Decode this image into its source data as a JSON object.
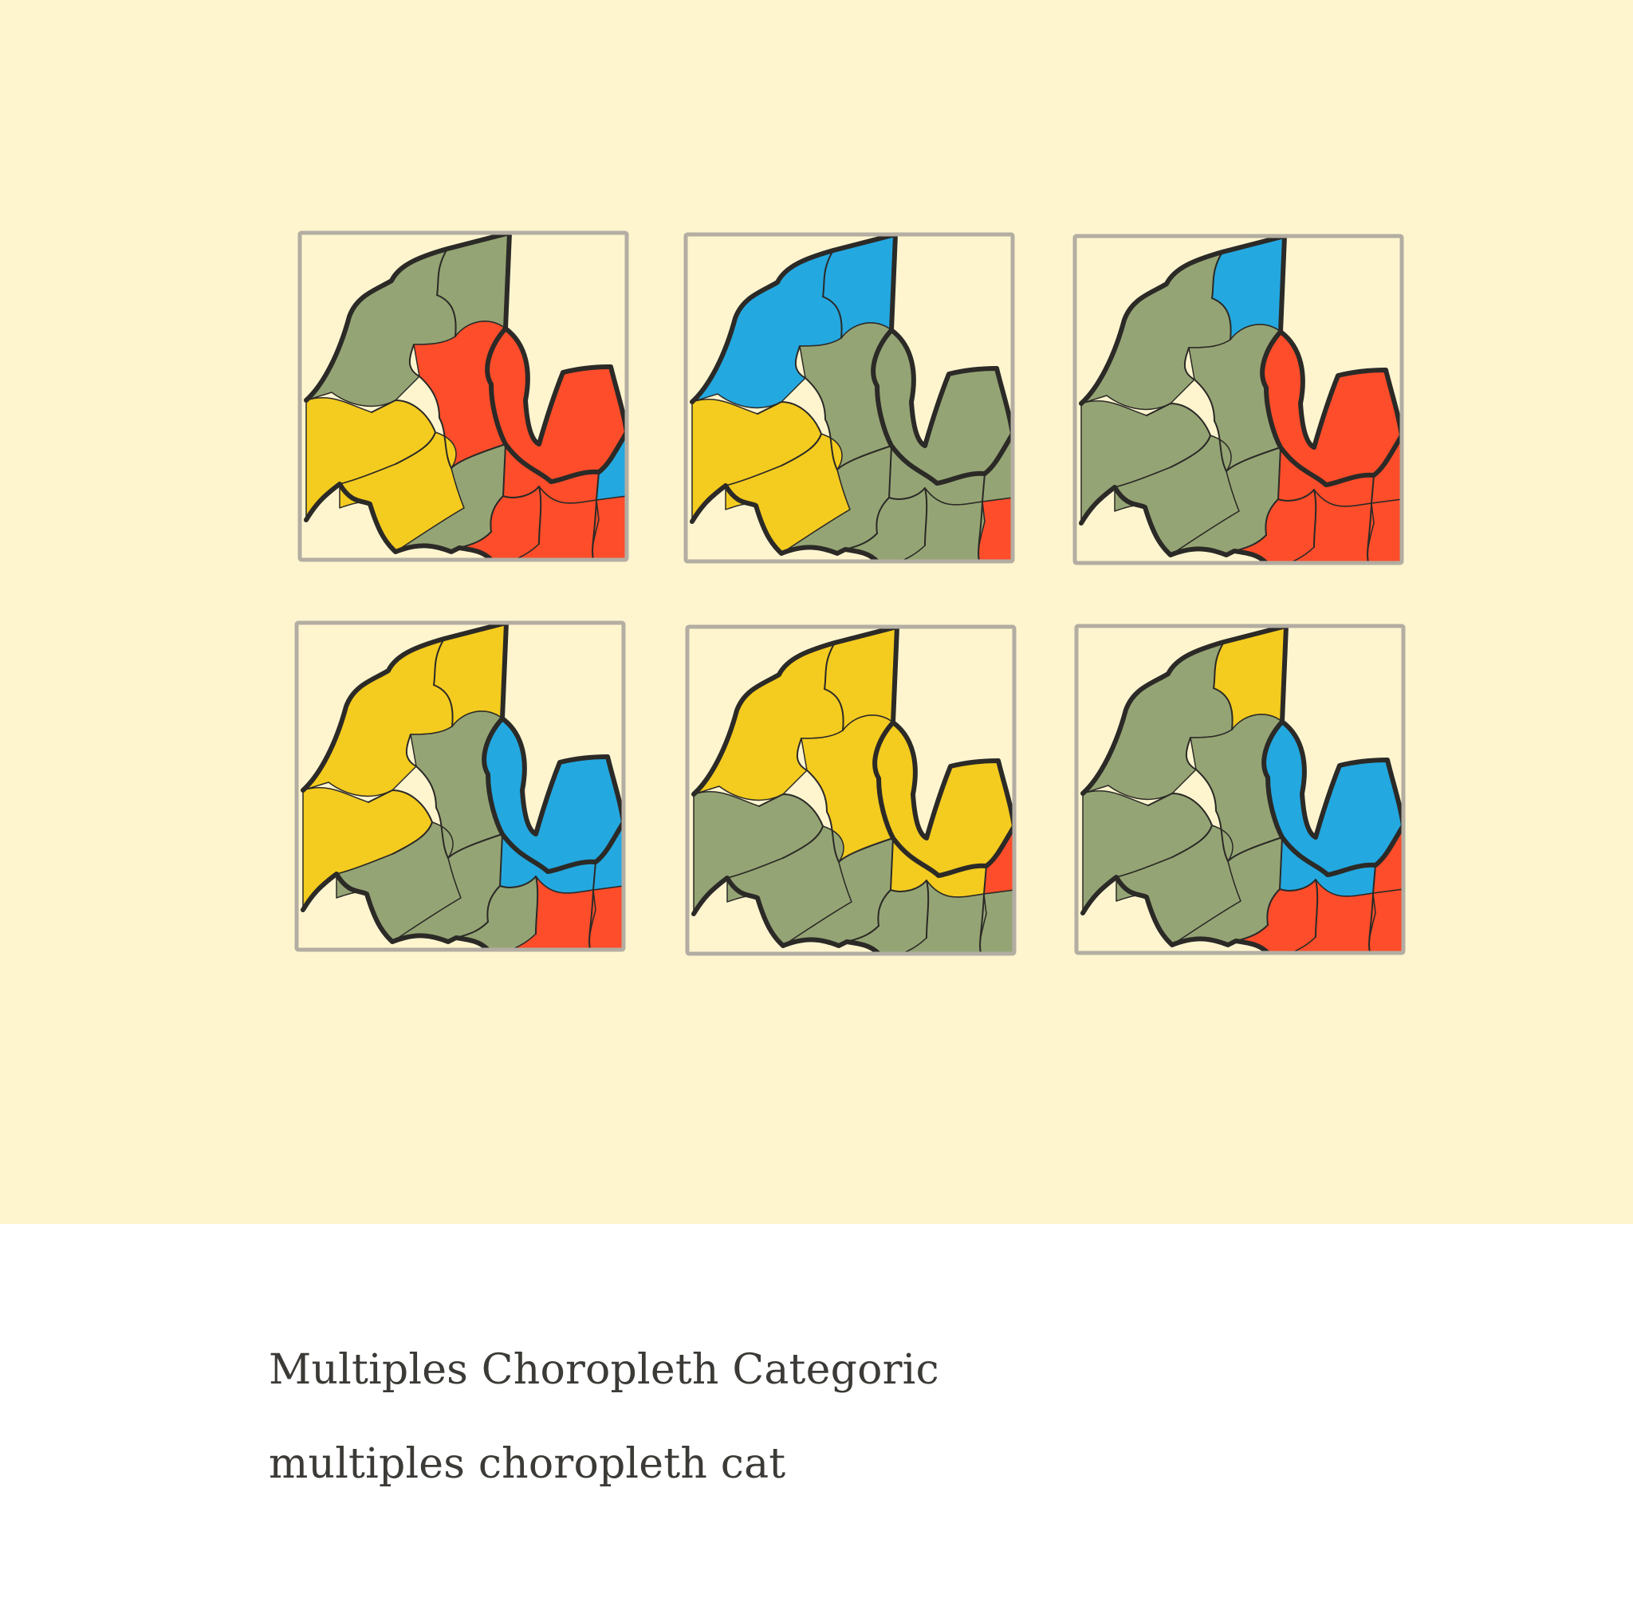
{
  "title": "Multiples Choropleth Categoric",
  "slug": "multiples choropleth cat",
  "colors": {
    "background": "#fef5cf",
    "frame": "#b3ada2",
    "outline": "#2b2a27",
    "categories": {
      "green": "#95a474",
      "red": "#fd4d2a",
      "yellow": "#f4cb1f",
      "blue": "#24a8e0"
    }
  },
  "maps": [
    {
      "regions": [
        "green",
        "green",
        "red",
        "red",
        "red",
        "yellow",
        "yellow",
        "green",
        "red",
        "red",
        "red",
        "blue"
      ]
    },
    {
      "regions": [
        "blue",
        "blue",
        "green",
        "green",
        "green",
        "yellow",
        "yellow",
        "green",
        "green",
        "green",
        "red",
        "green"
      ]
    },
    {
      "regions": [
        "green",
        "blue",
        "green",
        "red",
        "red",
        "green",
        "green",
        "green",
        "red",
        "red",
        "red",
        "red"
      ]
    },
    {
      "regions": [
        "yellow",
        "yellow",
        "green",
        "blue",
        "blue",
        "yellow",
        "green",
        "green",
        "green",
        "red",
        "red",
        "blue"
      ]
    },
    {
      "regions": [
        "yellow",
        "yellow",
        "yellow",
        "yellow",
        "yellow",
        "green",
        "green",
        "green",
        "green",
        "green",
        "green",
        "red"
      ]
    },
    {
      "regions": [
        "green",
        "yellow",
        "green",
        "blue",
        "blue",
        "green",
        "green",
        "green",
        "red",
        "red",
        "red",
        "red"
      ]
    }
  ]
}
